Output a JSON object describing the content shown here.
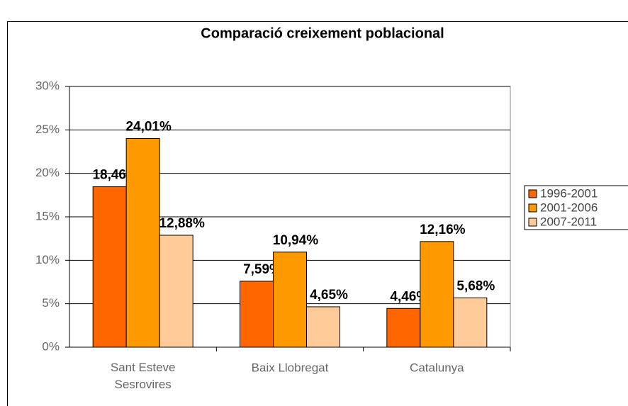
{
  "chart_data": {
    "type": "bar",
    "title": "Comparació creixement poblacional",
    "categories": [
      "Sant Esteve Sesrovires",
      "Baix Llobregat",
      "Catalunya"
    ],
    "series": [
      {
        "name": "1996-2001",
        "color": "#FF6600",
        "values": [
          18.46,
          7.59,
          4.46
        ],
        "value_labels": [
          "18,46%",
          "7,59%",
          "4,46%"
        ]
      },
      {
        "name": "2001-2006",
        "color": "#FF9900",
        "values": [
          24.01,
          10.94,
          12.16
        ],
        "value_labels": [
          "24,01%",
          "10,94%",
          "12,16%"
        ]
      },
      {
        "name": "2007-2011",
        "color": "#FFCC99",
        "values": [
          12.88,
          4.65,
          5.68
        ],
        "value_labels": [
          "12,88%",
          "4,65%",
          "5,68%"
        ]
      }
    ],
    "ylim": [
      0,
      30
    ],
    "yticks": [
      {
        "value": 0,
        "label": "0%"
      },
      {
        "value": 5,
        "label": "5%"
      },
      {
        "value": 10,
        "label": "10%"
      },
      {
        "value": 15,
        "label": "15%"
      },
      {
        "value": 20,
        "label": "20%"
      },
      {
        "value": 25,
        "label": "25%"
      },
      {
        "value": 30,
        "label": "30%"
      }
    ],
    "grid": true,
    "legend": "right"
  }
}
